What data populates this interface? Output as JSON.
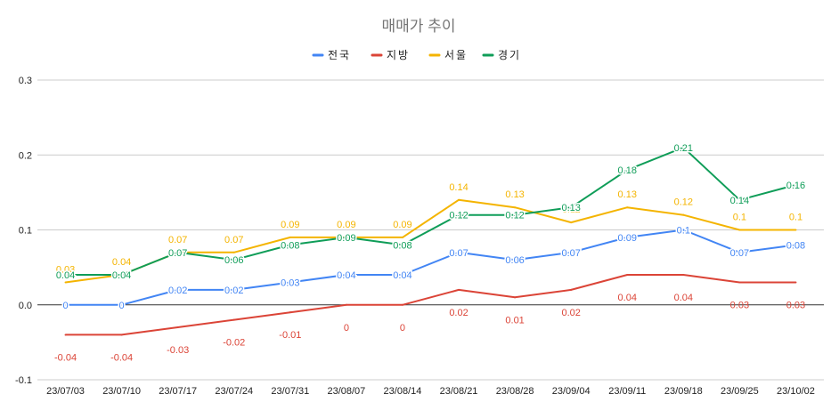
{
  "chart_data": {
    "type": "line",
    "title": "매매가 추이",
    "xlabel": "",
    "ylabel": "",
    "ylim": [
      -0.1,
      0.3
    ],
    "yticks": [
      "-0.1",
      "0.0",
      "0.1",
      "0.2",
      "0.3"
    ],
    "grid": true,
    "legend_position": "top-center",
    "categories": [
      "23/07/03",
      "23/07/10",
      "23/07/17",
      "23/07/24",
      "23/07/31",
      "23/08/07",
      "23/08/14",
      "23/08/21",
      "23/08/28",
      "23/09/04",
      "23/09/11",
      "23/09/18",
      "23/09/25",
      "23/10/02"
    ],
    "series": [
      {
        "name": "전국",
        "color": "#4285f4",
        "values": [
          0,
          0,
          0.02,
          0.02,
          0.03,
          0.04,
          0.04,
          0.07,
          0.06,
          0.07,
          0.09,
          0.1,
          0.07,
          0.08
        ],
        "labels": [
          "0",
          "0",
          "0.02",
          "0.02",
          "0.03",
          "0.04",
          "0.04",
          "0.07",
          "0.06",
          "0.07",
          "0.09",
          "0.1",
          "0.07",
          "0.08"
        ],
        "label_pos": "center"
      },
      {
        "name": "지방",
        "color": "#db4437",
        "values": [
          -0.04,
          -0.04,
          -0.03,
          -0.02,
          -0.01,
          0,
          0,
          0.02,
          0.01,
          0.02,
          0.04,
          0.04,
          0.03,
          0.03
        ],
        "labels": [
          "-0.04",
          "-0.04",
          "-0.03",
          "-0.02",
          "-0.01",
          "0",
          "0",
          "0.02",
          "0.01",
          "0.02",
          "0.04",
          "0.04",
          "0.03",
          "0.03"
        ],
        "label_pos": "below"
      },
      {
        "name": "서울",
        "color": "#f4b400",
        "values": [
          0.03,
          0.04,
          0.07,
          0.07,
          0.09,
          0.09,
          0.09,
          0.14,
          0.13,
          0.11,
          0.13,
          0.12,
          0.1,
          0.1
        ],
        "labels": [
          "0.03",
          "0.04",
          "0.07",
          "0.07",
          "0.09",
          "0.09",
          "0.09",
          "0.14",
          "0.13",
          "0.11",
          "0.13",
          "0.12",
          "0.1",
          "0.1"
        ],
        "label_pos": "above"
      },
      {
        "name": "경기",
        "color": "#0f9d58",
        "values": [
          0.04,
          0.04,
          0.07,
          0.06,
          0.08,
          0.09,
          0.08,
          0.12,
          0.12,
          0.13,
          0.18,
          0.21,
          0.14,
          0.16
        ],
        "labels": [
          "0.04",
          "0.04",
          "0.07",
          "0.06",
          "0.08",
          "0.09",
          "0.08",
          "0.12",
          "0.12",
          "0.13",
          "0.18",
          "0.21",
          "0.14",
          "0.16"
        ],
        "label_pos": "center"
      }
    ]
  }
}
